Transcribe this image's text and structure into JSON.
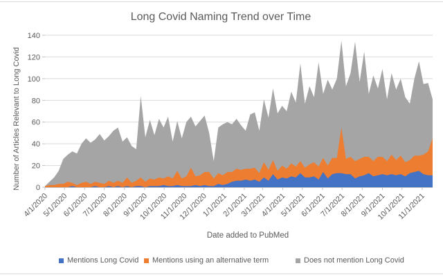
{
  "frame": {
    "background": "#ffffff",
    "border_color": "#d9d9d9"
  },
  "text_color": "#595959",
  "gridline_color": "#d9d9d9",
  "axis_line_color": "#bfbfbf",
  "chart_data": {
    "type": "area",
    "stacked": true,
    "title": "Long Covid Naming Trend over Time",
    "xlabel": "Date added to PubMed",
    "ylabel": "Number of Articles Relevant to Long Covid",
    "ylim": [
      0,
      140
    ],
    "y_ticks": [
      0,
      20,
      40,
      60,
      80,
      100,
      120,
      140
    ],
    "gridlines": true,
    "legend_position": "bottom",
    "x_tick_labels": [
      "4/1/2020",
      "5/1/2020",
      "6/1/2020",
      "7/1/2020",
      "8/1/2020",
      "9/1/2020",
      "10/1/2020",
      "11/1/2020",
      "12/1/2020",
      "1/1/2021",
      "2/1/2021",
      "3/1/2021",
      "4/1/2021",
      "5/1/2021",
      "6/1/2021",
      "7/1/2021",
      "8/1/2021",
      "9/1/2021",
      "10/1/2021",
      "11/1/2021"
    ],
    "x": [
      "4/1/2020",
      "4/8/2020",
      "4/15/2020",
      "4/22/2020",
      "4/29/2020",
      "5/6/2020",
      "5/13/2020",
      "5/20/2020",
      "5/27/2020",
      "6/3/2020",
      "6/10/2020",
      "6/17/2020",
      "6/24/2020",
      "7/1/2020",
      "7/8/2020",
      "7/15/2020",
      "7/22/2020",
      "7/29/2020",
      "8/5/2020",
      "8/12/2020",
      "8/19/2020",
      "8/26/2020",
      "9/2/2020",
      "9/9/2020",
      "9/16/2020",
      "9/23/2020",
      "9/30/2020",
      "10/7/2020",
      "10/14/2020",
      "10/21/2020",
      "10/28/2020",
      "11/4/2020",
      "11/11/2020",
      "11/18/2020",
      "11/25/2020",
      "12/2/2020",
      "12/9/2020",
      "12/16/2020",
      "12/23/2020",
      "12/30/2020",
      "1/6/2021",
      "1/13/2021",
      "1/20/2021",
      "1/27/2021",
      "2/3/2021",
      "2/10/2021",
      "2/17/2021",
      "2/24/2021",
      "3/3/2021",
      "3/10/2021",
      "3/17/2021",
      "3/24/2021",
      "3/31/2021",
      "4/7/2021",
      "4/14/2021",
      "4/21/2021",
      "4/28/2021",
      "5/5/2021",
      "5/12/2021",
      "5/19/2021",
      "5/26/2021",
      "6/2/2021",
      "6/9/2021",
      "6/16/2021",
      "6/23/2021",
      "6/30/2021",
      "7/7/2021",
      "7/14/2021",
      "7/21/2021",
      "7/28/2021",
      "8/4/2021",
      "8/11/2021",
      "8/18/2021",
      "8/25/2021",
      "9/1/2021",
      "9/8/2021",
      "9/15/2021",
      "9/22/2021",
      "9/29/2021",
      "10/6/2021",
      "10/13/2021",
      "10/20/2021",
      "10/27/2021",
      "11/3/2021",
      "11/10/2021",
      "11/17/2021"
    ],
    "series": [
      {
        "name": "Mentions Long Covid",
        "color": "#4472c4",
        "values": [
          0,
          0,
          0,
          0,
          0,
          0,
          1,
          0,
          0,
          0,
          0,
          1,
          0,
          0,
          1,
          0,
          1,
          0,
          1,
          0,
          1,
          1,
          0,
          1,
          1,
          1,
          2,
          1,
          1,
          2,
          1,
          1,
          1,
          2,
          1,
          2,
          1,
          1,
          3,
          2,
          3,
          5,
          6,
          6,
          7,
          6,
          7,
          5,
          9,
          6,
          12,
          7,
          9,
          8,
          10,
          9,
          13,
          9,
          9,
          10,
          7,
          14,
          8,
          12,
          13,
          13,
          12,
          12,
          8,
          10,
          11,
          13,
          10,
          11,
          12,
          11,
          12,
          11,
          12,
          10,
          13,
          14,
          15,
          12,
          11,
          11
        ]
      },
      {
        "name": "Mentions using an alternative term",
        "color": "#ed7d31",
        "values": [
          1,
          2,
          2,
          3,
          3,
          5,
          3,
          2,
          4,
          5,
          3,
          4,
          4,
          3,
          5,
          4,
          5,
          4,
          8,
          4,
          5,
          8,
          5,
          7,
          6,
          8,
          6,
          9,
          7,
          13,
          7,
          9,
          17,
          8,
          10,
          12,
          13,
          7,
          10,
          9,
          11,
          9,
          11,
          10,
          10,
          11,
          11,
          8,
          14,
          10,
          13,
          8,
          11,
          9,
          12,
          10,
          11,
          9,
          12,
          13,
          12,
          13,
          12,
          15,
          14,
          42,
          14,
          16,
          16,
          16,
          17,
          15,
          14,
          17,
          16,
          13,
          18,
          14,
          17,
          13,
          12,
          15,
          14,
          18,
          22,
          34
        ]
      },
      {
        "name": "Does not mention Long Covid",
        "color": "#a5a5a5",
        "values": [
          0,
          3,
          7,
          12,
          23,
          25,
          29,
          29,
          36,
          40,
          38,
          39,
          45,
          40,
          41,
          48,
          49,
          38,
          37,
          34,
          29,
          75,
          41,
          54,
          41,
          54,
          47,
          55,
          34,
          46,
          37,
          50,
          47,
          46,
          50,
          52,
          36,
          16,
          42,
          47,
          46,
          44,
          46,
          41,
          35,
          50,
          51,
          39,
          58,
          48,
          66,
          53,
          55,
          53,
          66,
          59,
          90,
          59,
          72,
          60,
          96,
          59,
          79,
          63,
          73,
          80,
          67,
          77,
          110,
          71,
          97,
          58,
          79,
          63,
          81,
          57,
          75,
          65,
          71,
          60,
          52,
          71,
          87,
          65,
          63,
          36
        ]
      }
    ]
  }
}
